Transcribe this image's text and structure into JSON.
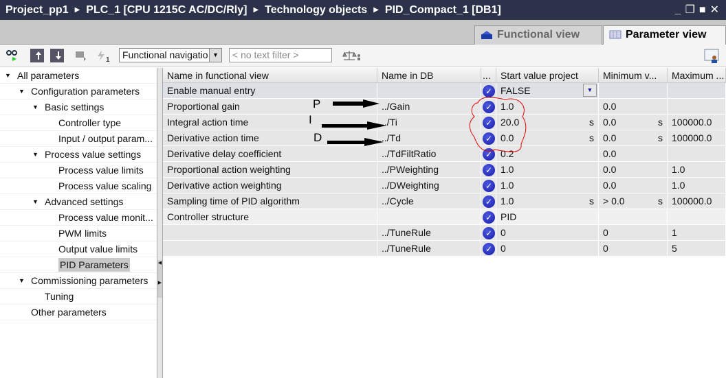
{
  "breadcrumb": [
    "Project_pp1",
    "PLC_1 [CPU 1215C AC/DC/Rly]",
    "Technology objects",
    "PID_Compact_1 [DB1]"
  ],
  "tabs": {
    "functional": "Functional view",
    "parameter": "Parameter view",
    "active": "Parameter view"
  },
  "toolbar": {
    "navigation_select": "Functional navigatio",
    "filter_placeholder": "< no text filter >",
    "badge": "1"
  },
  "tree": [
    {
      "label": "All parameters",
      "level": 0,
      "expanded": true
    },
    {
      "label": "Configuration parameters",
      "level": 1,
      "expanded": true
    },
    {
      "label": "Basic settings",
      "level": 2,
      "expanded": true
    },
    {
      "label": "Controller type",
      "level": 3
    },
    {
      "label": "Input / output param...",
      "level": 3
    },
    {
      "label": "Process value settings",
      "level": 2,
      "expanded": true
    },
    {
      "label": "Process value limits",
      "level": 3
    },
    {
      "label": "Process value scaling",
      "level": 3
    },
    {
      "label": "Advanced settings",
      "level": 2,
      "expanded": true
    },
    {
      "label": "Process value monit...",
      "level": 3
    },
    {
      "label": "PWM limits",
      "level": 3
    },
    {
      "label": "Output value limits",
      "level": 3
    },
    {
      "label": "PID Parameters",
      "level": 3,
      "selected": true
    },
    {
      "label": "Commissioning parameters",
      "level": 1,
      "expanded": true
    },
    {
      "label": "Tuning",
      "level": 2
    },
    {
      "label": "Other parameters",
      "level": 1
    }
  ],
  "columns": [
    "Name in functional view",
    "Name in DB",
    "...",
    "Start value project",
    "Minimum v...",
    "Maximum ..."
  ],
  "rows": [
    {
      "name": "Enable manual entry",
      "db": "",
      "start": "FALSE",
      "start_unit": "",
      "min": "",
      "min_unit": "",
      "max": ""
    },
    {
      "name": "Proportional gain",
      "db": "../Gain",
      "start": "1.0",
      "start_unit": "",
      "min": "0.0",
      "min_unit": "",
      "max": ""
    },
    {
      "name": "Integral action time",
      "db": "../Ti",
      "start": "20.0",
      "start_unit": "s",
      "min": "0.0",
      "min_unit": "s",
      "max": "100000.0"
    },
    {
      "name": "Derivative action time",
      "db": "../Td",
      "start": "0.0",
      "start_unit": "s",
      "min": "0.0",
      "min_unit": "s",
      "max": "100000.0"
    },
    {
      "name": "Derivative delay coefficient",
      "db": "../TdFiltRatio",
      "start": "0.2",
      "start_unit": "",
      "min": "0.0",
      "min_unit": "",
      "max": ""
    },
    {
      "name": "Proportional action weighting",
      "db": "../PWeighting",
      "start": "1.0",
      "start_unit": "",
      "min": "0.0",
      "min_unit": "",
      "max": "1.0"
    },
    {
      "name": "Derivative action weighting",
      "db": "../DWeighting",
      "start": "1.0",
      "start_unit": "",
      "min": "0.0",
      "min_unit": "",
      "max": "1.0"
    },
    {
      "name": "Sampling time of PID algorithm",
      "db": "../Cycle",
      "start": "1.0",
      "start_unit": "s",
      "min": "> 0.0",
      "min_unit": "s",
      "max": "100000.0"
    },
    {
      "name": "Controller structure",
      "db": "",
      "start": "PID",
      "start_unit": "",
      "min": "",
      "min_unit": "",
      "max": ""
    },
    {
      "name": "",
      "db": "../TuneRule",
      "start": "0",
      "start_unit": "",
      "min": "0",
      "min_unit": "",
      "max": "1"
    },
    {
      "name": "",
      "db": "../TuneRule",
      "start": "0",
      "start_unit": "",
      "min": "0",
      "min_unit": "",
      "max": "5"
    }
  ],
  "annotations": {
    "p": "P",
    "i": "I",
    "d": "D",
    "circle_color": "#e00000"
  },
  "colors": {
    "title_bg": "#2b3249",
    "check": "#1a1aa8"
  }
}
